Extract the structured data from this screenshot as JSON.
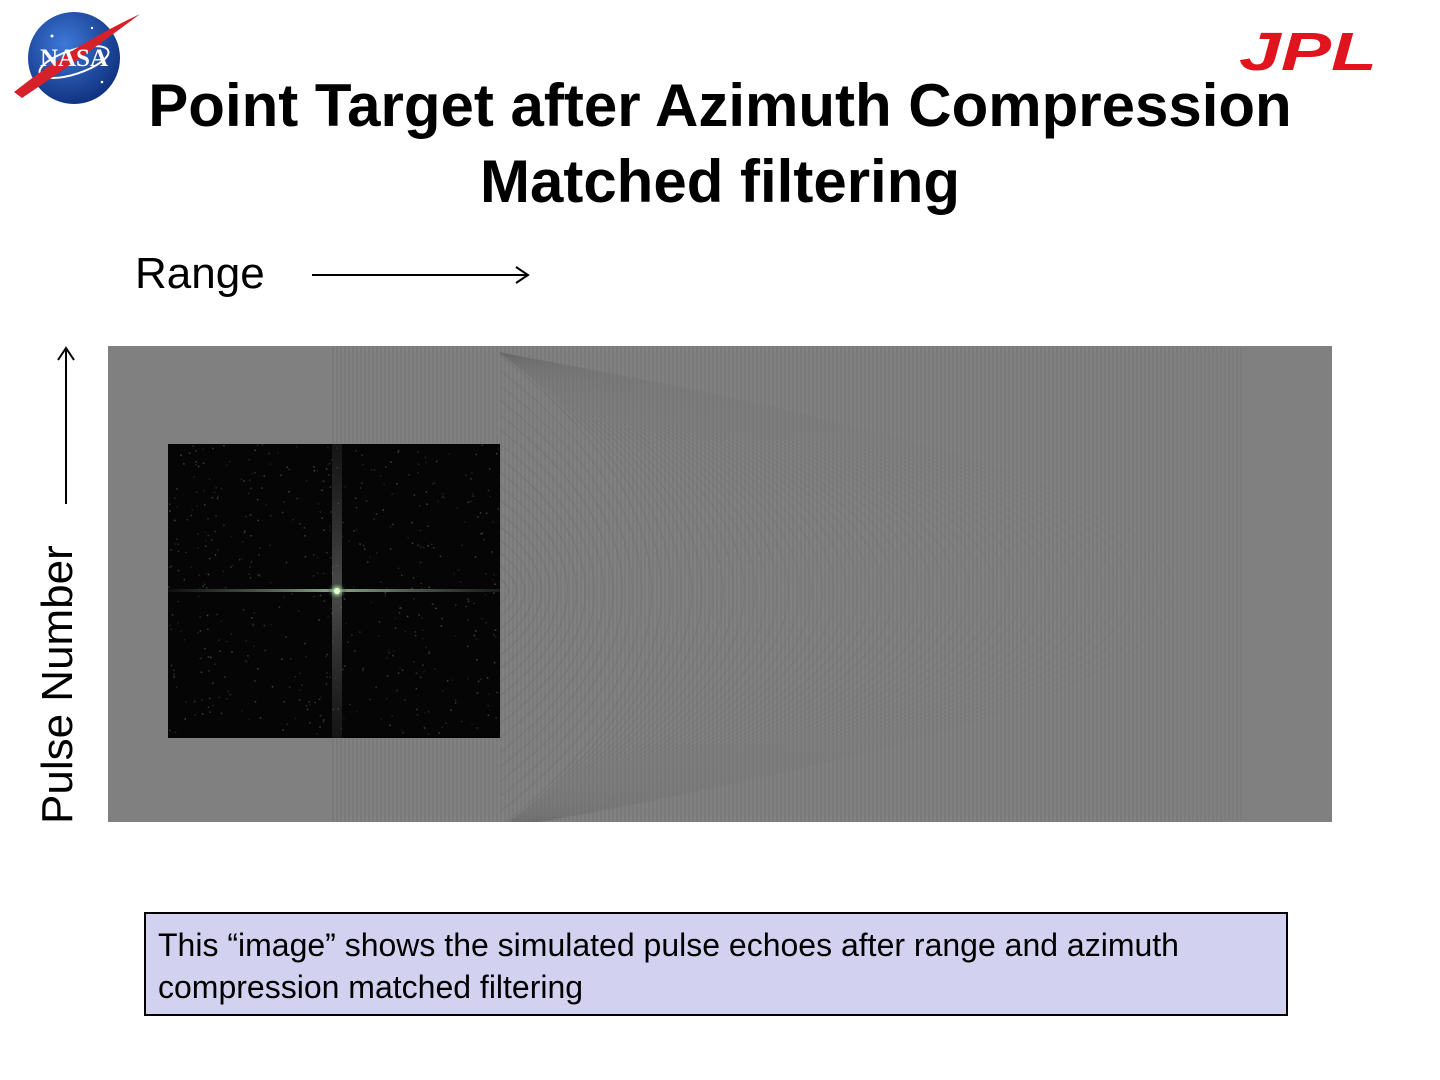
{
  "logos": {
    "left": {
      "text": "NASA",
      "colors": {
        "circle": "#1e4fa8",
        "swoosh": "#d6202a"
      }
    },
    "right": {
      "text": "JPL",
      "color": "#e0141e"
    }
  },
  "slide": {
    "title_line1": "Point Target after Azimuth Compression",
    "title_line2": "Matched filtering",
    "range_label": "Range",
    "pulse_label": "Pulse Number",
    "caption": "This “image” shows the simulated pulse echoes after range and azimuth compression matched filtering"
  },
  "figure": {
    "icon": "sar-point-target-image",
    "background_color": "#808080",
    "inset_color": "#050505"
  }
}
